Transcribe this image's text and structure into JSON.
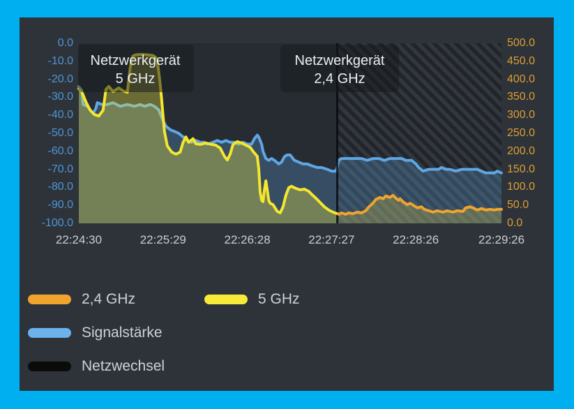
{
  "window": {
    "border_color": "#00aff0",
    "panel_color": "#2e3339",
    "plot_background": "#272c33"
  },
  "chart_data": {
    "type": "line",
    "title": "",
    "x_axis": {
      "tick_labels": [
        "22:24:30",
        "22:25:29",
        "22:26:28",
        "22:27:27",
        "22:28:26",
        "22:29:26"
      ],
      "tick_seconds": [
        0,
        59,
        118,
        177,
        236,
        296
      ],
      "span_seconds": 296,
      "label_color": "#c9cdd1"
    },
    "y_axis_left": {
      "min": -100,
      "max": 0,
      "tick_labels": [
        "0.0",
        "-10.0",
        "-20.0",
        "-30.0",
        "-40.0",
        "-50.0",
        "-60.0",
        "-70.0",
        "-80.0",
        "-90.0",
        "-100.0"
      ],
      "label_color": "#4f96d6"
    },
    "y_axis_right": {
      "min": 0,
      "max": 500,
      "tick_labels": [
        "500.0",
        "450.0",
        "400.0",
        "350.0",
        "300.0",
        "250.0",
        "200.0",
        "150.0",
        "100.0",
        "50.0",
        "0.0"
      ],
      "label_color": "#dc9e33"
    },
    "annotations": [
      {
        "line1": "Netzwerkgerät",
        "line2": "5 GHz"
      },
      {
        "line1": "Netzwerkgerät",
        "line2": "2,4 GHz"
      }
    ],
    "network_change_seconds": 181,
    "network_change_color": "rgba(8,8,10,0.8)",
    "hatch_region": {
      "from_seconds": 181,
      "to_seconds": 296
    },
    "series": [
      {
        "name": "Signalstärke",
        "axis": "left",
        "color": "#5fa7e4",
        "fill": "rgba(95,167,228,0.27)",
        "points": [
          [
            0,
            -24
          ],
          [
            2,
            -26
          ],
          [
            3,
            -34
          ],
          [
            6,
            -35
          ],
          [
            8,
            -37
          ],
          [
            10,
            -39
          ],
          [
            12,
            -36
          ],
          [
            13,
            -33
          ],
          [
            16,
            -34
          ],
          [
            20,
            -34
          ],
          [
            24,
            -33
          ],
          [
            29,
            -35
          ],
          [
            34,
            -34
          ],
          [
            39,
            -35
          ],
          [
            43,
            -34
          ],
          [
            46,
            -35
          ],
          [
            50,
            -34
          ],
          [
            53,
            -35
          ],
          [
            56,
            -37
          ],
          [
            59,
            -43
          ],
          [
            61,
            -46
          ],
          [
            64,
            -48
          ],
          [
            67,
            -49
          ],
          [
            70,
            -50
          ],
          [
            73,
            -52
          ],
          [
            76,
            -54
          ],
          [
            79,
            -55
          ],
          [
            82,
            -54
          ],
          [
            85,
            -55
          ],
          [
            88,
            -55
          ],
          [
            90,
            -56
          ],
          [
            94,
            -55
          ],
          [
            97,
            -54
          ],
          [
            100,
            -55
          ],
          [
            103,
            -54
          ],
          [
            106,
            -55
          ],
          [
            109,
            -55
          ],
          [
            112,
            -56
          ],
          [
            115,
            -55
          ],
          [
            118,
            -56
          ],
          [
            121,
            -56
          ],
          [
            123,
            -53
          ],
          [
            125,
            -51
          ],
          [
            126,
            -52
          ],
          [
            128,
            -56
          ],
          [
            129,
            -60
          ],
          [
            131,
            -64
          ],
          [
            133,
            -65
          ],
          [
            135,
            -64
          ],
          [
            137,
            -65
          ],
          [
            140,
            -67
          ],
          [
            142,
            -66
          ],
          [
            144,
            -63
          ],
          [
            146,
            -62
          ],
          [
            148,
            -62
          ],
          [
            151,
            -65
          ],
          [
            154,
            -66
          ],
          [
            157,
            -67
          ],
          [
            160,
            -67
          ],
          [
            163,
            -68
          ],
          [
            167,
            -69
          ],
          [
            170,
            -69
          ],
          [
            174,
            -70
          ],
          [
            177,
            -71
          ],
          [
            180,
            -71
          ],
          [
            181,
            -69
          ],
          [
            182,
            -65
          ],
          [
            184,
            -64
          ],
          [
            187,
            -64
          ],
          [
            191,
            -64
          ],
          [
            194,
            -64
          ],
          [
            198,
            -64
          ],
          [
            202,
            -65
          ],
          [
            206,
            -64
          ],
          [
            210,
            -64
          ],
          [
            214,
            -65
          ],
          [
            218,
            -64
          ],
          [
            222,
            -64
          ],
          [
            226,
            -64
          ],
          [
            229,
            -65
          ],
          [
            233,
            -65
          ],
          [
            236,
            -67
          ],
          [
            238,
            -69
          ],
          [
            241,
            -71
          ],
          [
            245,
            -70
          ],
          [
            248,
            -70
          ],
          [
            252,
            -70
          ],
          [
            254,
            -69
          ],
          [
            257,
            -70
          ],
          [
            260,
            -70
          ],
          [
            264,
            -71
          ],
          [
            268,
            -70
          ],
          [
            271,
            -70
          ],
          [
            275,
            -70
          ],
          [
            279,
            -70
          ],
          [
            282,
            -71
          ],
          [
            285,
            -72
          ],
          [
            288,
            -72
          ],
          [
            291,
            -72
          ],
          [
            293,
            -71
          ],
          [
            296,
            -72
          ]
        ]
      },
      {
        "name": "5 GHz",
        "axis": "right",
        "color": "#f5e62f",
        "fill": "rgba(238,228,60,0.34)",
        "points": [
          [
            0,
            374
          ],
          [
            2,
            366
          ],
          [
            5,
            337
          ],
          [
            8,
            314
          ],
          [
            11,
            302
          ],
          [
            14,
            298
          ],
          [
            17,
            314
          ],
          [
            19,
            372
          ],
          [
            21,
            380
          ],
          [
            24,
            366
          ],
          [
            28,
            376
          ],
          [
            31,
            368
          ],
          [
            34,
            364
          ],
          [
            35,
            400
          ],
          [
            36,
            432
          ],
          [
            37,
            456
          ],
          [
            38,
            465
          ],
          [
            40,
            468
          ],
          [
            44,
            469
          ],
          [
            48,
            468
          ],
          [
            52,
            466
          ],
          [
            54,
            460
          ],
          [
            55,
            448
          ],
          [
            56,
            420
          ],
          [
            57,
            385
          ],
          [
            58,
            345
          ],
          [
            59,
            298
          ],
          [
            60,
            255
          ],
          [
            62,
            215
          ],
          [
            65,
            198
          ],
          [
            68,
            192
          ],
          [
            71,
            198
          ],
          [
            73,
            225
          ],
          [
            75,
            240
          ],
          [
            77,
            225
          ],
          [
            80,
            235
          ],
          [
            82,
            221
          ],
          [
            85,
            219
          ],
          [
            89,
            223
          ],
          [
            93,
            219
          ],
          [
            96,
            217
          ],
          [
            99,
            209
          ],
          [
            102,
            186
          ],
          [
            104,
            176
          ],
          [
            106,
            192
          ],
          [
            108,
            219
          ],
          [
            111,
            227
          ],
          [
            114,
            223
          ],
          [
            117,
            217
          ],
          [
            120,
            211
          ],
          [
            122,
            200
          ],
          [
            125,
            186
          ],
          [
            126,
            151
          ],
          [
            127,
            87
          ],
          [
            128,
            64
          ],
          [
            129,
            60
          ],
          [
            130,
            93
          ],
          [
            131,
            118
          ],
          [
            132,
            93
          ],
          [
            133,
            64
          ],
          [
            134,
            56
          ],
          [
            136,
            52
          ],
          [
            139,
            33
          ],
          [
            141,
            29
          ],
          [
            143,
            46
          ],
          [
            145,
            78
          ],
          [
            147,
            99
          ],
          [
            149,
            103
          ],
          [
            152,
            97
          ],
          [
            155,
            93
          ],
          [
            158,
            95
          ],
          [
            161,
            89
          ],
          [
            163,
            81
          ],
          [
            166,
            70
          ],
          [
            169,
            58
          ],
          [
            172,
            46
          ],
          [
            175,
            37
          ],
          [
            178,
            31
          ],
          [
            181,
            27
          ]
        ]
      },
      {
        "name": "2,4 GHz",
        "axis": "right",
        "color": "#f0a42e",
        "fill": "rgba(230,210,60,0.26)",
        "points": [
          [
            182,
            25
          ],
          [
            184,
            29
          ],
          [
            187,
            25
          ],
          [
            189,
            29
          ],
          [
            192,
            27
          ],
          [
            195,
            31
          ],
          [
            198,
            29
          ],
          [
            201,
            35
          ],
          [
            203,
            45
          ],
          [
            206,
            56
          ],
          [
            208,
            66
          ],
          [
            211,
            72
          ],
          [
            213,
            68
          ],
          [
            215,
            76
          ],
          [
            218,
            72
          ],
          [
            220,
            78
          ],
          [
            222,
            70
          ],
          [
            224,
            64
          ],
          [
            225,
            68
          ],
          [
            227,
            60
          ],
          [
            230,
            52
          ],
          [
            232,
            56
          ],
          [
            235,
            48
          ],
          [
            237,
            43
          ],
          [
            240,
            46
          ],
          [
            242,
            39
          ],
          [
            245,
            35
          ],
          [
            248,
            31
          ],
          [
            251,
            35
          ],
          [
            255,
            31
          ],
          [
            258,
            35
          ],
          [
            262,
            31
          ],
          [
            265,
            35
          ],
          [
            269,
            33
          ],
          [
            271,
            43
          ],
          [
            274,
            46
          ],
          [
            276,
            43
          ],
          [
            279,
            37
          ],
          [
            282,
            41
          ],
          [
            285,
            37
          ],
          [
            288,
            39
          ],
          [
            291,
            37
          ],
          [
            293,
            39
          ],
          [
            296,
            39
          ]
        ]
      }
    ]
  },
  "legend": {
    "items": [
      {
        "label": "2,4 GHz",
        "color": "#f0a42e"
      },
      {
        "label": "5 GHz",
        "color": "#f6ea3a"
      },
      {
        "label": "Signalstärke",
        "color": "#6cb3ec"
      },
      {
        "label": "Netzwechsel",
        "color": "#0b0b0b"
      }
    ]
  }
}
